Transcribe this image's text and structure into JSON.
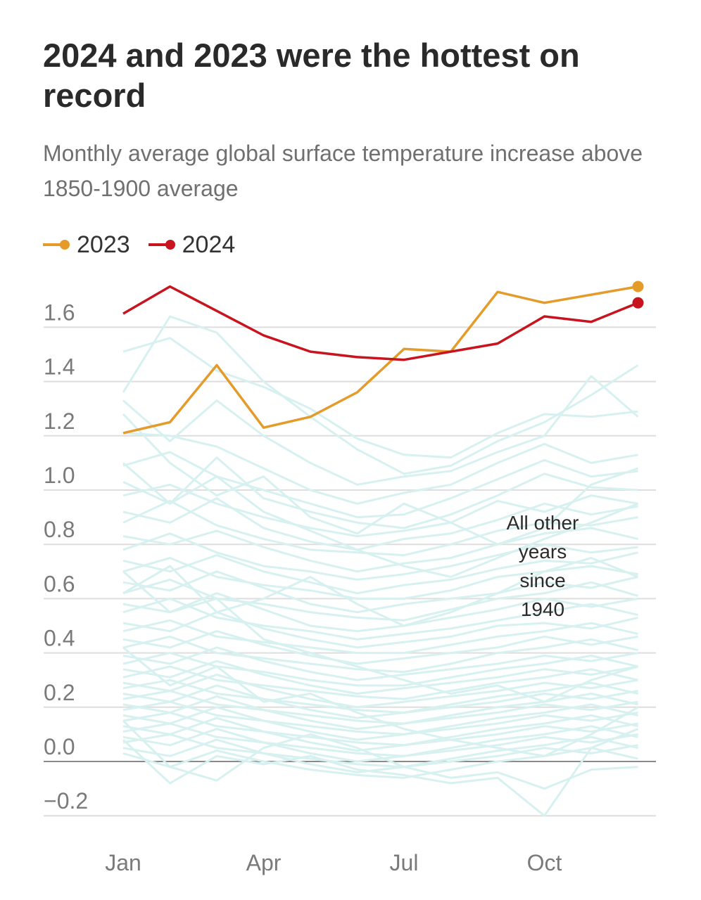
{
  "title": "2024 and 2023 were the hottest on record",
  "subtitle": "Monthly average global surface temperature increase above 1850-1900 average",
  "legend": [
    {
      "label": "2023",
      "color": "#e49b2a"
    },
    {
      "label": "2024",
      "color": "#c8141e"
    }
  ],
  "annotation": [
    "All other",
    "years",
    "since",
    "1940"
  ],
  "colors": {
    "background_years": "#d7f0f0",
    "grid": "#dedede",
    "zero_line": "#8a8a8a"
  },
  "chart_data": {
    "type": "line",
    "x": [
      "Jan",
      "Feb",
      "Mar",
      "Apr",
      "May",
      "Jun",
      "Jul",
      "Aug",
      "Sep",
      "Oct",
      "Nov",
      "Dec"
    ],
    "x_tick_labels": [
      "Jan",
      "Apr",
      "Jul",
      "Oct"
    ],
    "ylim": [
      -0.2,
      1.8
    ],
    "y_ticks": [
      1.6,
      1.4,
      1.2,
      1.0,
      0.8,
      0.6,
      0.4,
      0.2,
      0.0,
      -0.2
    ],
    "y_tick_labels": [
      "1.6",
      "1.4",
      "1.2",
      "1.0",
      "0.8",
      "0.6",
      "0.4",
      "0.2",
      "0.0",
      "−0.2"
    ],
    "grid": true,
    "legend_position": "top-left",
    "series": [
      {
        "name": "2023",
        "color": "#e49b2a",
        "values": [
          1.21,
          1.25,
          1.46,
          1.23,
          1.27,
          1.36,
          1.52,
          1.51,
          1.73,
          1.69,
          1.72,
          1.75
        ]
      },
      {
        "name": "2024",
        "color": "#c8141e",
        "values": [
          1.65,
          1.75,
          1.66,
          1.57,
          1.51,
          1.49,
          1.48,
          1.51,
          1.54,
          1.64,
          1.62,
          1.69
        ]
      }
    ],
    "background_series": [
      [
        1.51,
        1.56,
        1.44,
        1.38,
        1.3,
        1.19,
        1.13,
        1.12,
        1.21,
        1.28,
        1.27,
        1.29
      ],
      [
        1.36,
        1.64,
        1.58,
        1.4,
        1.27,
        1.15,
        1.06,
        1.09,
        1.18,
        1.25,
        1.35,
        1.46
      ],
      [
        1.33,
        1.18,
        1.33,
        1.2,
        1.1,
        1.02,
        1.05,
        1.07,
        1.14,
        1.2,
        1.42,
        1.27
      ],
      [
        1.21,
        1.2,
        1.16,
        1.08,
        1.0,
        0.95,
        0.99,
        1.02,
        1.1,
        1.17,
        1.1,
        1.13
      ],
      [
        1.09,
        1.14,
        1.05,
        1.0,
        0.95,
        0.9,
        0.91,
        0.97,
        1.04,
        1.11,
        1.05,
        1.07
      ],
      [
        1.03,
        0.95,
        1.12,
        0.97,
        0.92,
        0.88,
        0.86,
        0.91,
        0.98,
        1.06,
        1.01,
        1.0
      ],
      [
        0.98,
        1.02,
        0.95,
        0.9,
        0.86,
        0.83,
        0.85,
        0.88,
        0.96,
        0.92,
        0.98,
        0.95
      ],
      [
        0.92,
        0.88,
        0.97,
        0.86,
        0.81,
        0.78,
        0.82,
        0.84,
        0.89,
        0.95,
        0.91,
        0.94
      ],
      [
        0.88,
        0.96,
        0.87,
        0.82,
        0.78,
        0.77,
        0.76,
        0.8,
        0.85,
        0.88,
        0.87,
        0.9
      ],
      [
        0.83,
        0.8,
        0.85,
        0.79,
        0.74,
        0.7,
        0.73,
        0.75,
        0.8,
        0.84,
        0.86,
        0.82
      ],
      [
        0.78,
        0.84,
        0.77,
        0.72,
        0.7,
        0.67,
        0.69,
        0.72,
        0.76,
        0.8,
        0.77,
        0.79
      ],
      [
        0.74,
        0.7,
        0.76,
        0.7,
        0.66,
        0.62,
        0.65,
        0.67,
        0.71,
        0.74,
        0.73,
        0.77
      ],
      [
        0.7,
        0.75,
        0.68,
        0.65,
        0.63,
        0.6,
        0.6,
        0.63,
        0.68,
        0.7,
        0.72,
        0.69
      ],
      [
        0.66,
        0.63,
        0.7,
        0.64,
        0.58,
        0.55,
        0.58,
        0.6,
        0.62,
        0.66,
        0.64,
        0.68
      ],
      [
        0.62,
        0.67,
        0.6,
        0.58,
        0.55,
        0.53,
        0.52,
        0.56,
        0.6,
        0.62,
        0.66,
        0.61
      ],
      [
        0.58,
        0.55,
        0.62,
        0.56,
        0.5,
        0.48,
        0.5,
        0.53,
        0.56,
        0.6,
        0.57,
        0.6
      ],
      [
        0.55,
        0.6,
        0.53,
        0.5,
        0.48,
        0.45,
        0.47,
        0.49,
        0.52,
        0.55,
        0.58,
        0.54
      ],
      [
        0.51,
        0.48,
        0.55,
        0.49,
        0.45,
        0.42,
        0.44,
        0.46,
        0.5,
        0.51,
        0.49,
        0.53
      ],
      [
        0.48,
        0.52,
        0.46,
        0.44,
        0.42,
        0.4,
        0.4,
        0.43,
        0.46,
        0.48,
        0.51,
        0.47
      ],
      [
        0.45,
        0.42,
        0.48,
        0.43,
        0.39,
        0.36,
        0.38,
        0.4,
        0.42,
        0.46,
        0.43,
        0.46
      ],
      [
        0.42,
        0.46,
        0.4,
        0.38,
        0.36,
        0.34,
        0.33,
        0.36,
        0.4,
        0.42,
        0.45,
        0.41
      ],
      [
        0.39,
        0.36,
        0.42,
        0.37,
        0.33,
        0.3,
        0.32,
        0.34,
        0.36,
        0.39,
        0.37,
        0.4
      ],
      [
        0.36,
        0.4,
        0.35,
        0.33,
        0.3,
        0.28,
        0.28,
        0.31,
        0.34,
        0.36,
        0.39,
        0.35
      ],
      [
        0.34,
        0.31,
        0.37,
        0.32,
        0.28,
        0.25,
        0.27,
        0.29,
        0.31,
        0.34,
        0.32,
        0.35
      ],
      [
        0.31,
        0.35,
        0.3,
        0.28,
        0.26,
        0.24,
        0.23,
        0.26,
        0.29,
        0.31,
        0.34,
        0.3
      ],
      [
        0.29,
        0.26,
        0.32,
        0.27,
        0.23,
        0.2,
        0.22,
        0.24,
        0.26,
        0.29,
        0.27,
        0.3
      ],
      [
        0.27,
        0.3,
        0.25,
        0.23,
        0.21,
        0.19,
        0.18,
        0.21,
        0.24,
        0.26,
        0.29,
        0.25
      ],
      [
        0.25,
        0.22,
        0.28,
        0.23,
        0.19,
        0.16,
        0.18,
        0.2,
        0.22,
        0.25,
        0.23,
        0.26
      ],
      [
        0.23,
        0.26,
        0.21,
        0.19,
        0.17,
        0.15,
        0.14,
        0.17,
        0.2,
        0.22,
        0.25,
        0.21
      ],
      [
        0.21,
        0.18,
        0.24,
        0.19,
        0.15,
        0.12,
        0.14,
        0.16,
        0.18,
        0.21,
        0.19,
        0.22
      ],
      [
        0.19,
        0.22,
        0.17,
        0.15,
        0.13,
        0.11,
        0.1,
        0.13,
        0.16,
        0.18,
        0.21,
        0.17
      ],
      [
        0.17,
        0.14,
        0.2,
        0.15,
        0.11,
        0.08,
        0.1,
        0.12,
        0.14,
        0.17,
        0.15,
        0.18
      ],
      [
        0.15,
        0.18,
        0.13,
        0.11,
        0.09,
        0.07,
        0.06,
        0.09,
        0.12,
        0.14,
        0.17,
        0.13
      ],
      [
        0.13,
        0.1,
        0.16,
        0.11,
        0.07,
        0.04,
        0.06,
        0.08,
        0.1,
        0.13,
        0.11,
        0.14
      ],
      [
        0.11,
        0.14,
        0.09,
        0.07,
        0.05,
        0.03,
        0.02,
        0.05,
        0.08,
        0.1,
        0.13,
        0.09
      ],
      [
        0.09,
        0.06,
        0.12,
        0.07,
        0.03,
        0.0,
        0.02,
        0.04,
        0.06,
        0.09,
        0.07,
        0.1
      ],
      [
        0.07,
        0.1,
        0.05,
        0.03,
        0.01,
        -0.01,
        -0.02,
        0.01,
        0.04,
        0.06,
        0.09,
        0.05
      ],
      [
        0.05,
        0.02,
        0.08,
        0.03,
        -0.01,
        -0.04,
        -0.02,
        0.0,
        0.02,
        0.05,
        0.03,
        0.06
      ],
      [
        0.03,
        -0.02,
        0.04,
        0.0,
        -0.03,
        -0.05,
        -0.06,
        -0.03,
        0.0,
        0.02,
        0.05,
        0.01
      ],
      [
        0.08,
        -0.08,
        0.02,
        -0.01,
        0.02,
        -0.03,
        -0.05,
        -0.08,
        -0.06,
        -0.2,
        0.05,
        0.12
      ],
      [
        0.15,
        -0.02,
        -0.07,
        0.05,
        0.1,
        0.05,
        -0.02,
        -0.06,
        -0.04,
        -0.1,
        -0.03,
        -0.02
      ],
      [
        0.42,
        0.28,
        0.35,
        0.22,
        0.25,
        0.18,
        0.12,
        0.08,
        0.05,
        0.02,
        0.1,
        0.2
      ],
      [
        0.7,
        0.55,
        0.6,
        0.45,
        0.4,
        0.35,
        0.3,
        0.25,
        0.28,
        0.22,
        0.3,
        0.35
      ],
      [
        1.1,
        0.95,
        1.05,
        0.92,
        0.85,
        0.78,
        0.72,
        0.68,
        0.75,
        0.82,
        0.88,
        0.95
      ],
      [
        0.62,
        0.72,
        0.55,
        0.6,
        0.68,
        0.58,
        0.5,
        0.55,
        0.62,
        0.7,
        0.75,
        0.68
      ],
      [
        1.28,
        1.1,
        0.98,
        1.05,
        0.9,
        0.84,
        0.95,
        0.88,
        0.8,
        0.86,
        1.02,
        1.08
      ]
    ]
  }
}
